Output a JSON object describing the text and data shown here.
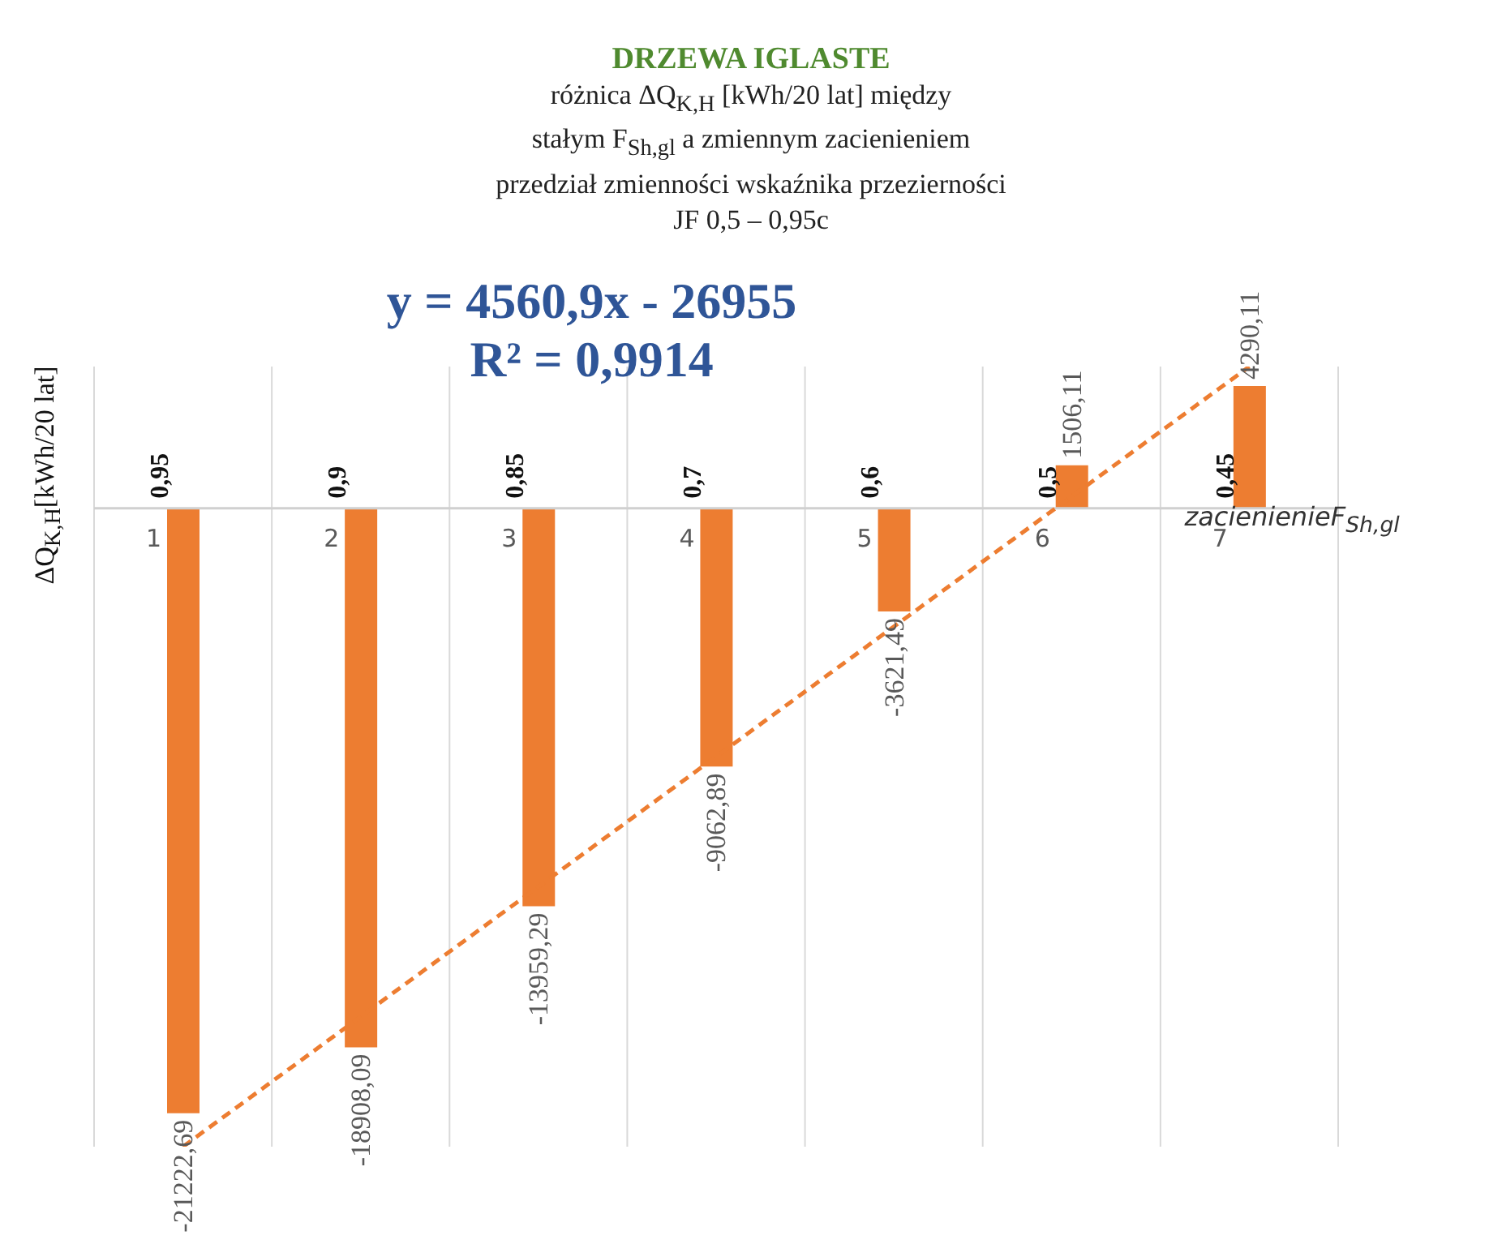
{
  "chart_data": {
    "type": "bar",
    "title": "DRZEWA IGLASTE",
    "subtitle": "różnica ΔQ$_{K,H}$  [kWh/20 lat] między\nstałym F$_{Sh,gl}$ a zmiennym zacienieniem\nprzedział zmienności wskaźnika przezierności\nJF 0,5 – 0,95c",
    "xlabel": "zacienienieF$_{Sh,gl}$",
    "ylabel": "ΔQ$_{K,H}$[kWh/20 lat]",
    "categories": [
      "1",
      "2",
      "3",
      "4",
      "5",
      "6",
      "7"
    ],
    "series": [
      {
        "color": "#ed7d31",
        "values": [
          -21222.69,
          -18908.09,
          -13959.29,
          -9062.89,
          -3621.49,
          1506.11,
          4290.11
        ],
        "value_labels": [
          "-21222,69",
          "-18908,09",
          "-13959,29",
          "-9062,89",
          "-3621,49",
          "1506,11",
          "4290,11"
        ]
      },
      {
        "type": "line",
        "color": "#ed7d31",
        "line_style": "dashed",
        "marker": "none",
        "x": [
          "1",
          "7"
        ],
        "values": [
          -22394.1,
          4971.3
        ]
      }
    ],
    "annotations": [
      "y = 4560,9x - 26955",
      "R² = 0,9914",
      "0,95",
      "0,9",
      "0,85",
      "0,7",
      "0,6",
      "0,5",
      "0,45"
    ],
    "grid": "x"
  }
}
